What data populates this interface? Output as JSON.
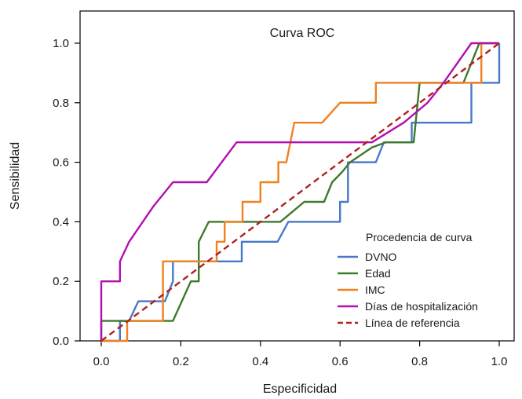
{
  "chart_data": {
    "type": "line",
    "title": "Curva ROC",
    "xlabel": "Especificidad",
    "ylabel": "Sensibilidad",
    "xlim": [
      -0.05,
      1.0
    ],
    "ylim": [
      0.0,
      1.1
    ],
    "x_ticks": [
      "0.0",
      "0.2",
      "0.4",
      "0.6",
      "0.8",
      "1.0"
    ],
    "y_ticks": [
      "0.0",
      "0.2",
      "0.4",
      "0.6",
      "0.8",
      "1.0"
    ],
    "grid": false,
    "legend_title": "Procedencia de curva",
    "legend_position": "bottom-right",
    "series": [
      {
        "name": "DVNO",
        "color": "#4878c8",
        "style": "solid",
        "points": [
          [
            0.0,
            0.0
          ],
          [
            0.047,
            0.0
          ],
          [
            0.047,
            0.067
          ],
          [
            0.07,
            0.067
          ],
          [
            0.07,
            0.067
          ],
          [
            0.093,
            0.133
          ],
          [
            0.16,
            0.133
          ],
          [
            0.18,
            0.2
          ],
          [
            0.18,
            0.267
          ],
          [
            0.353,
            0.267
          ],
          [
            0.353,
            0.333
          ],
          [
            0.443,
            0.333
          ],
          [
            0.47,
            0.4
          ],
          [
            0.6,
            0.4
          ],
          [
            0.6,
            0.467
          ],
          [
            0.62,
            0.467
          ],
          [
            0.62,
            0.6
          ],
          [
            0.69,
            0.6
          ],
          [
            0.71,
            0.667
          ],
          [
            0.78,
            0.667
          ],
          [
            0.78,
            0.733
          ],
          [
            0.93,
            0.733
          ],
          [
            0.93,
            0.867
          ],
          [
            1.0,
            0.867
          ],
          [
            1.0,
            1.0
          ]
        ]
      },
      {
        "name": "Edad",
        "color": "#3d7a2b",
        "style": "solid",
        "points": [
          [
            0.0,
            0.0
          ],
          [
            0.0,
            0.067
          ],
          [
            0.18,
            0.067
          ],
          [
            0.225,
            0.2
          ],
          [
            0.245,
            0.2
          ],
          [
            0.245,
            0.333
          ],
          [
            0.27,
            0.4
          ],
          [
            0.4,
            0.4
          ],
          [
            0.45,
            0.4
          ],
          [
            0.51,
            0.467
          ],
          [
            0.56,
            0.467
          ],
          [
            0.58,
            0.533
          ],
          [
            0.605,
            0.567
          ],
          [
            0.625,
            0.6
          ],
          [
            0.68,
            0.65
          ],
          [
            0.715,
            0.667
          ],
          [
            0.785,
            0.667
          ],
          [
            0.8,
            0.867
          ],
          [
            0.91,
            0.867
          ],
          [
            0.95,
            1.0
          ],
          [
            1.0,
            1.0
          ]
        ]
      },
      {
        "name": "IMC",
        "color": "#f08020",
        "style": "solid",
        "points": [
          [
            0.0,
            0.0
          ],
          [
            0.065,
            0.0
          ],
          [
            0.065,
            0.067
          ],
          [
            0.155,
            0.067
          ],
          [
            0.155,
            0.267
          ],
          [
            0.29,
            0.267
          ],
          [
            0.29,
            0.333
          ],
          [
            0.31,
            0.333
          ],
          [
            0.31,
            0.4
          ],
          [
            0.355,
            0.4
          ],
          [
            0.355,
            0.467
          ],
          [
            0.4,
            0.467
          ],
          [
            0.4,
            0.533
          ],
          [
            0.445,
            0.533
          ],
          [
            0.445,
            0.6
          ],
          [
            0.465,
            0.6
          ],
          [
            0.485,
            0.733
          ],
          [
            0.555,
            0.733
          ],
          [
            0.6,
            0.8
          ],
          [
            0.69,
            0.8
          ],
          [
            0.69,
            0.867
          ],
          [
            0.955,
            0.867
          ],
          [
            0.955,
            1.0
          ],
          [
            1.0,
            1.0
          ]
        ]
      },
      {
        "name": "Días de hospitalización",
        "color": "#b010b0",
        "style": "solid",
        "points": [
          [
            0.0,
            0.0
          ],
          [
            0.0,
            0.2
          ],
          [
            0.047,
            0.2
          ],
          [
            0.047,
            0.267
          ],
          [
            0.07,
            0.333
          ],
          [
            0.13,
            0.45
          ],
          [
            0.18,
            0.533
          ],
          [
            0.265,
            0.533
          ],
          [
            0.34,
            0.667
          ],
          [
            0.62,
            0.667
          ],
          [
            0.68,
            0.667
          ],
          [
            0.76,
            0.733
          ],
          [
            0.82,
            0.8
          ],
          [
            0.86,
            0.867
          ],
          [
            0.93,
            1.0
          ],
          [
            1.0,
            1.0
          ]
        ]
      },
      {
        "name": "Línea de referencia",
        "color": "#b02020",
        "style": "dashed",
        "points": [
          [
            0.0,
            0.0
          ],
          [
            1.0,
            1.0
          ]
        ]
      }
    ]
  }
}
